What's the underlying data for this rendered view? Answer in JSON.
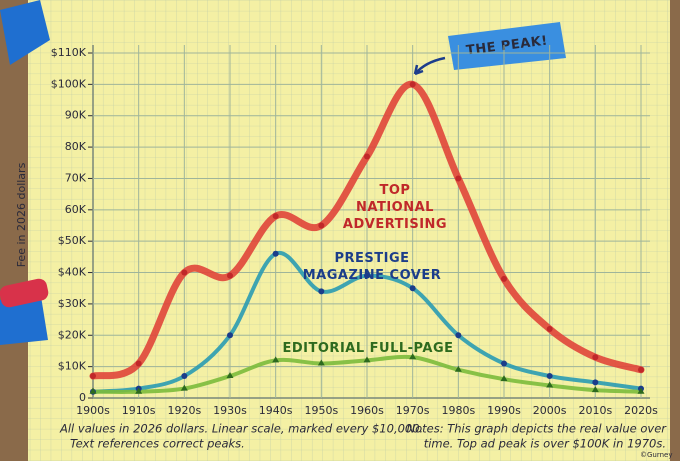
{
  "chart_data": {
    "type": "line",
    "ylabel": "Fee in 2026 dollars",
    "categories": [
      "1900s",
      "1910s",
      "1920s",
      "1930s",
      "1940s",
      "1950s",
      "1960s",
      "1970s",
      "1980s",
      "1990s",
      "2000s",
      "2010s",
      "2020s"
    ],
    "ylim": [
      0,
      110000
    ],
    "yticks": [
      0,
      {
        "value": 10000,
        "label": "$10K"
      },
      {
        "value": 20000,
        "label": "$20K"
      },
      {
        "value": 30000,
        "label": "$30K"
      },
      {
        "value": 40000,
        "label": "$40K"
      },
      {
        "value": 50000,
        "label": "$50K"
      },
      {
        "value": 60000,
        "label": "60K"
      },
      {
        "value": 70000,
        "label": "70K"
      },
      {
        "value": 80000,
        "label": "80K"
      },
      {
        "value": 90000,
        "label": "90K"
      },
      {
        "value": 100000,
        "label": "$100K"
      },
      {
        "value": 110000,
        "label": "$110K"
      }
    ],
    "grid": true,
    "series": [
      {
        "name": "TOP NATIONAL ADVERTISING",
        "color": "#e0453a",
        "values": [
          7000,
          11000,
          40000,
          39000,
          58000,
          55000,
          77000,
          100000,
          70000,
          38000,
          22000,
          13000,
          9000
        ]
      },
      {
        "name": "PRESTIGE MAGAZINE COVER",
        "color": "#2a9bb2",
        "values": [
          2000,
          3000,
          7000,
          20000,
          46000,
          34000,
          39000,
          35000,
          20000,
          11000,
          7000,
          5000,
          3000
        ]
      },
      {
        "name": "EDITORIAL FULL-PAGE",
        "color": "#7cbb3c",
        "values": [
          2000,
          2000,
          3000,
          7000,
          12000,
          11000,
          12000,
          13000,
          9000,
          6000,
          4000,
          2500,
          2000
        ]
      }
    ],
    "annotations": [
      "THE PEAK!",
      "All values in 2026 dollars. Linear scale, marked every $10,000.",
      "Text references correct peaks.",
      "Notes: This graph depicts the real value over",
      "time. Top ad peak is over $100K in 1970s.",
      "©Gurney"
    ]
  }
}
